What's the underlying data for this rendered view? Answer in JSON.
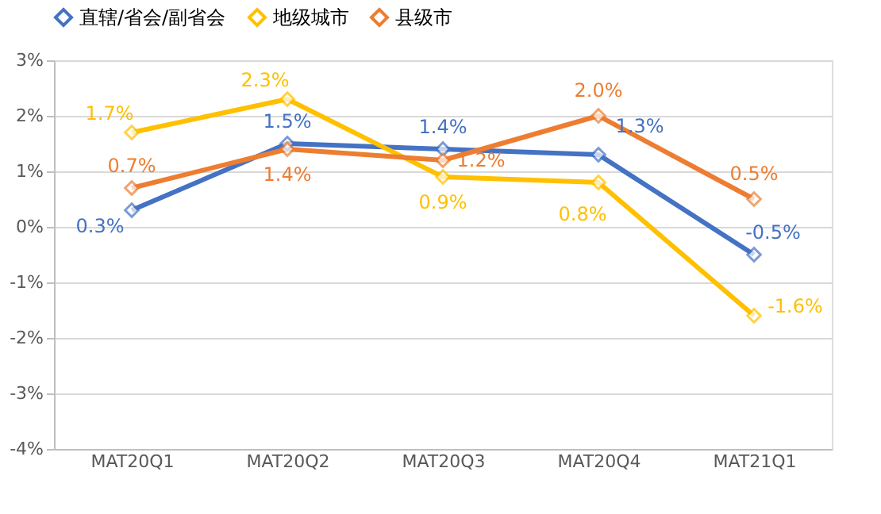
{
  "chart_data": {
    "type": "line",
    "categories": [
      "MAT20Q1",
      "MAT20Q2",
      "MAT20Q3",
      "MAT20Q4",
      "MAT21Q1"
    ],
    "series": [
      {
        "name": "直辖/省会/副省会",
        "color": "#4472c4",
        "values": [
          0.3,
          1.5,
          1.4,
          1.3,
          -0.5
        ],
        "value_labels": [
          "0.3%",
          "1.5%",
          "1.4%",
          "1.3%",
          "-0.5%"
        ]
      },
      {
        "name": "地级城市",
        "color": "#ffc000",
        "values": [
          1.7,
          2.3,
          0.9,
          0.8,
          -1.6
        ],
        "value_labels": [
          "1.7%",
          "2.3%",
          "0.9%",
          "0.8%",
          "-1.6%"
        ]
      },
      {
        "name": "县级市",
        "color": "#ed7d31",
        "values": [
          0.7,
          1.4,
          1.2,
          2.0,
          0.5
        ],
        "value_labels": [
          "0.7%",
          "1.4%",
          "1.2%",
          "2.0%",
          "0.5%"
        ]
      }
    ],
    "ylim": [
      -4,
      3
    ],
    "yticks": [
      {
        "value": -4,
        "label": "-4%"
      },
      {
        "value": -3,
        "label": "-3%"
      },
      {
        "value": -2,
        "label": "-2%"
      },
      {
        "value": -1,
        "label": "-1%"
      },
      {
        "value": 0,
        "label": "0%"
      },
      {
        "value": 1,
        "label": "1%"
      },
      {
        "value": 2,
        "label": "2%"
      },
      {
        "value": 3,
        "label": "3%"
      }
    ],
    "grid": "y",
    "legend": "top",
    "marker": "diamond",
    "line_style": "solid"
  }
}
